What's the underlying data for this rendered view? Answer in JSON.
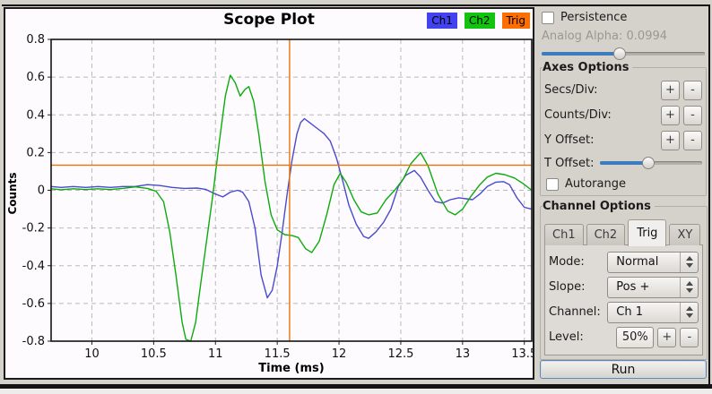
{
  "plot": {
    "title": "Scope Plot",
    "legend": [
      {
        "label": "Ch1",
        "color": "#4243ee"
      },
      {
        "label": "Ch2",
        "color": "#10c410"
      },
      {
        "label": "Trig",
        "color": "#ff6e00"
      }
    ]
  },
  "chart_data": {
    "type": "line",
    "title": "Scope Plot",
    "xlabel": "Time (ms)",
    "ylabel": "Counts",
    "xlim": [
      9.67,
      13.56
    ],
    "ylim": [
      -0.8,
      0.8
    ],
    "x_ticks": [
      10,
      10.5,
      11,
      11.5,
      12,
      12.5,
      13,
      13.5
    ],
    "y_ticks": [
      -0.8,
      -0.6,
      -0.4,
      -0.2,
      0,
      0.2,
      0.4,
      0.6,
      0.8
    ],
    "grid": true,
    "legend_position": "top-right",
    "grid_color": "#b9b9b9",
    "trigger": {
      "t": 11.6,
      "level": 0.133,
      "color": "#e87407"
    },
    "series": [
      {
        "name": "Ch1",
        "color": "#4a4ace",
        "points": [
          [
            9.67,
            0.02
          ],
          [
            9.75,
            0.015
          ],
          [
            9.85,
            0.02
          ],
          [
            9.95,
            0.015
          ],
          [
            10.05,
            0.02
          ],
          [
            10.15,
            0.015
          ],
          [
            10.25,
            0.02
          ],
          [
            10.35,
            0.02
          ],
          [
            10.45,
            0.03
          ],
          [
            10.55,
            0.025
          ],
          [
            10.65,
            0.015
          ],
          [
            10.75,
            0.01
          ],
          [
            10.85,
            0.012
          ],
          [
            10.92,
            0.005
          ],
          [
            11.0,
            -0.02
          ],
          [
            11.06,
            -0.035
          ],
          [
            11.12,
            -0.01
          ],
          [
            11.18,
            0.0
          ],
          [
            11.22,
            -0.01
          ],
          [
            11.27,
            -0.06
          ],
          [
            11.32,
            -0.2
          ],
          [
            11.37,
            -0.45
          ],
          [
            11.42,
            -0.57
          ],
          [
            11.46,
            -0.53
          ],
          [
            11.5,
            -0.4
          ],
          [
            11.54,
            -0.22
          ],
          [
            11.58,
            -0.02
          ],
          [
            11.62,
            0.16
          ],
          [
            11.66,
            0.3
          ],
          [
            11.69,
            0.36
          ],
          [
            11.72,
            0.38
          ],
          [
            11.76,
            0.36
          ],
          [
            11.82,
            0.33
          ],
          [
            11.88,
            0.3
          ],
          [
            11.93,
            0.26
          ],
          [
            11.98,
            0.17
          ],
          [
            12.03,
            0.05
          ],
          [
            12.08,
            -0.08
          ],
          [
            12.14,
            -0.18
          ],
          [
            12.2,
            -0.245
          ],
          [
            12.24,
            -0.255
          ],
          [
            12.3,
            -0.22
          ],
          [
            12.36,
            -0.17
          ],
          [
            12.42,
            -0.1
          ],
          [
            12.48,
            0.02
          ],
          [
            12.54,
            0.08
          ],
          [
            12.61,
            0.105
          ],
          [
            12.66,
            0.07
          ],
          [
            12.72,
            0.0
          ],
          [
            12.78,
            -0.06
          ],
          [
            12.84,
            -0.068
          ],
          [
            12.9,
            -0.05
          ],
          [
            12.97,
            -0.04
          ],
          [
            13.03,
            -0.045
          ],
          [
            13.08,
            -0.05
          ],
          [
            13.14,
            -0.02
          ],
          [
            13.2,
            0.02
          ],
          [
            13.27,
            0.043
          ],
          [
            13.33,
            0.046
          ],
          [
            13.38,
            0.03
          ],
          [
            13.44,
            -0.04
          ],
          [
            13.5,
            -0.09
          ],
          [
            13.56,
            -0.1
          ]
        ]
      },
      {
        "name": "Ch2",
        "color": "#0cab0c",
        "points": [
          [
            9.67,
            0.008
          ],
          [
            9.75,
            0.003
          ],
          [
            9.85,
            0.008
          ],
          [
            9.95,
            0.004
          ],
          [
            10.05,
            0.008
          ],
          [
            10.15,
            0.004
          ],
          [
            10.25,
            0.01
          ],
          [
            10.35,
            0.018
          ],
          [
            10.45,
            0.01
          ],
          [
            10.52,
            -0.005
          ],
          [
            10.58,
            -0.06
          ],
          [
            10.63,
            -0.22
          ],
          [
            10.68,
            -0.45
          ],
          [
            10.73,
            -0.7
          ],
          [
            10.76,
            -0.79
          ],
          [
            10.8,
            -0.8
          ],
          [
            10.84,
            -0.7
          ],
          [
            10.88,
            -0.5
          ],
          [
            10.93,
            -0.26
          ],
          [
            10.98,
            -0.02
          ],
          [
            11.03,
            0.25
          ],
          [
            11.08,
            0.5
          ],
          [
            11.12,
            0.61
          ],
          [
            11.16,
            0.57
          ],
          [
            11.2,
            0.5
          ],
          [
            11.24,
            0.535
          ],
          [
            11.27,
            0.55
          ],
          [
            11.31,
            0.47
          ],
          [
            11.35,
            0.3
          ],
          [
            11.4,
            0.05
          ],
          [
            11.45,
            -0.13
          ],
          [
            11.5,
            -0.21
          ],
          [
            11.56,
            -0.235
          ],
          [
            11.62,
            -0.24
          ],
          [
            11.67,
            -0.25
          ],
          [
            11.73,
            -0.31
          ],
          [
            11.78,
            -0.33
          ],
          [
            11.84,
            -0.27
          ],
          [
            11.9,
            -0.13
          ],
          [
            11.96,
            0.03
          ],
          [
            12.01,
            0.09
          ],
          [
            12.06,
            0.04
          ],
          [
            12.12,
            -0.05
          ],
          [
            12.18,
            -0.115
          ],
          [
            12.24,
            -0.13
          ],
          [
            12.31,
            -0.12
          ],
          [
            12.38,
            -0.05
          ],
          [
            12.45,
            0.0
          ],
          [
            12.52,
            0.06
          ],
          [
            12.58,
            0.14
          ],
          [
            12.66,
            0.2
          ],
          [
            12.72,
            0.13
          ],
          [
            12.8,
            -0.02
          ],
          [
            12.88,
            -0.11
          ],
          [
            12.94,
            -0.13
          ],
          [
            13.0,
            -0.1
          ],
          [
            13.07,
            -0.03
          ],
          [
            13.14,
            0.03
          ],
          [
            13.2,
            0.07
          ],
          [
            13.27,
            0.09
          ],
          [
            13.34,
            0.083
          ],
          [
            13.42,
            0.065
          ],
          [
            13.49,
            0.035
          ],
          [
            13.56,
            0.0
          ]
        ]
      }
    ]
  },
  "controls": {
    "persistence": {
      "label": "Persistence",
      "checked": false
    },
    "analog_alpha": {
      "label": "Analog Alpha: 0.0994",
      "percent": 48,
      "accent": "#3d7bbf"
    },
    "axes_options": {
      "title": "Axes Options",
      "rows": [
        {
          "label": "Secs/Div:",
          "plus": "+",
          "minus": "-"
        },
        {
          "label": "Counts/Div:",
          "plus": "+",
          "minus": "-"
        },
        {
          "label": "Y Offset:",
          "plus": "+",
          "minus": "-"
        }
      ],
      "t_offset": {
        "label": "T Offset:",
        "percent": 48
      },
      "autorange": {
        "label": "Autorange",
        "checked": false
      }
    },
    "channel_options": {
      "title": "Channel Options",
      "tabs": [
        {
          "label": "Ch1",
          "active": false
        },
        {
          "label": "Ch2",
          "active": false
        },
        {
          "label": "Trig",
          "active": true
        },
        {
          "label": "XY",
          "active": false
        }
      ],
      "rows": [
        {
          "label": "Mode:",
          "value": "Normal"
        },
        {
          "label": "Slope:",
          "value": "Pos +"
        },
        {
          "label": "Channel:",
          "value": "Ch 1"
        }
      ],
      "level": {
        "label": "Level:",
        "value": "50%",
        "plus": "+",
        "minus": "-"
      }
    },
    "run_label": "Run"
  }
}
